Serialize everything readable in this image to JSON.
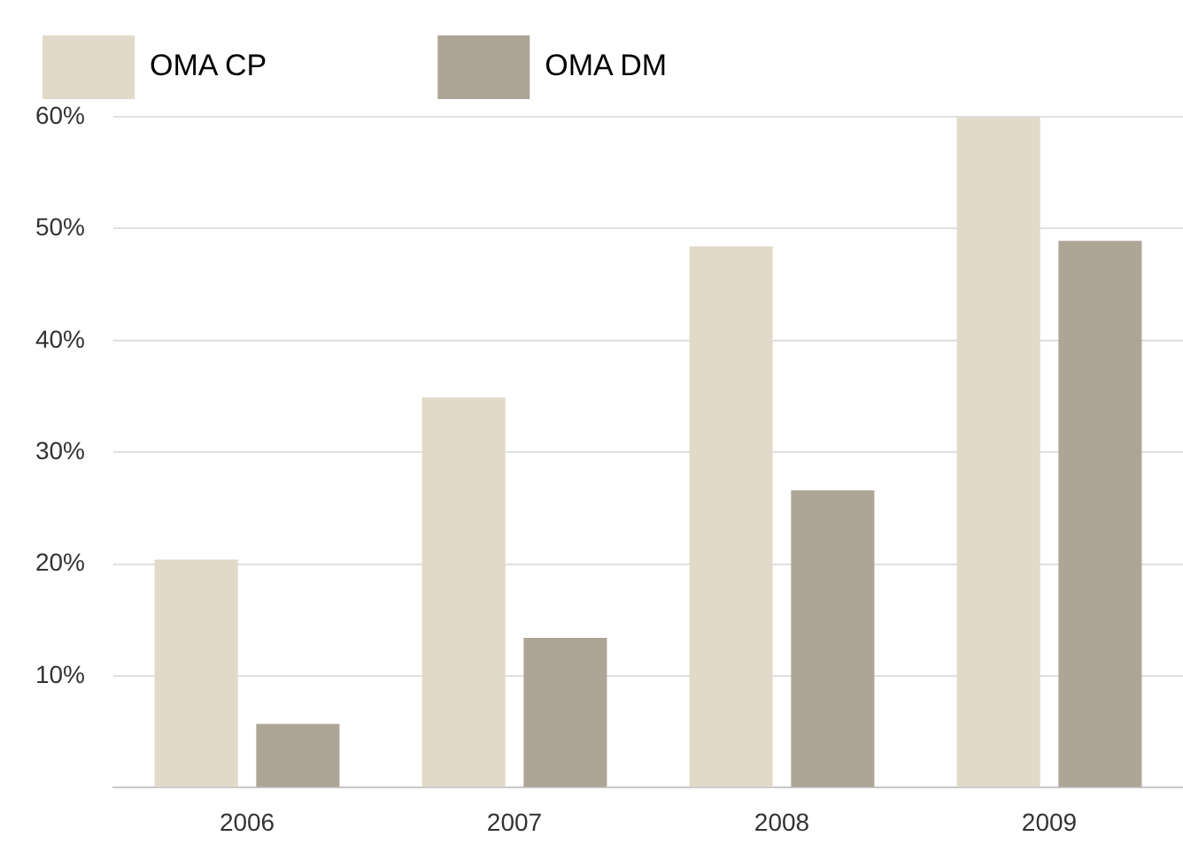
{
  "chart_data": {
    "type": "bar",
    "categories": [
      "2006",
      "2007",
      "2008",
      "2009"
    ],
    "series": [
      {
        "name": "OMA CP",
        "color": "#e1dac8",
        "values": [
          20.4,
          34.9,
          48.4,
          60.0
        ]
      },
      {
        "name": "OMA DM",
        "color": "#ada596",
        "values": [
          5.7,
          13.4,
          26.6,
          48.9
        ]
      }
    ],
    "ylim": [
      0,
      60
    ],
    "yticks": [
      {
        "value": 0,
        "label": null
      },
      {
        "value": 10,
        "label": "10%"
      },
      {
        "value": 20,
        "label": "20%"
      },
      {
        "value": 30,
        "label": "30%"
      },
      {
        "value": 40,
        "label": "40%"
      },
      {
        "value": 50,
        "label": "50%"
      },
      {
        "value": 60,
        "label": "60%"
      }
    ],
    "grid": "y",
    "legend": "top left"
  }
}
